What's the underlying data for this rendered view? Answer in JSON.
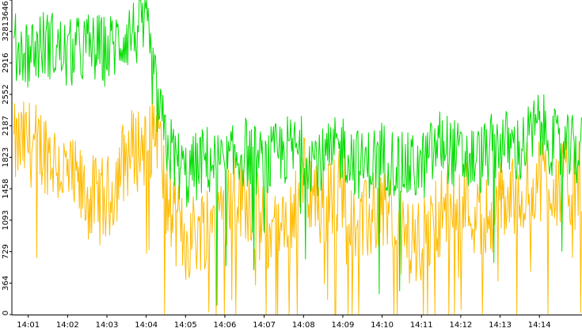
{
  "chart_data": {
    "type": "line",
    "title": "",
    "xlabel": "",
    "ylabel": "",
    "x_tick_labels": [
      "14:01",
      "14:02",
      "14:03",
      "14:04",
      "14:05",
      "14:06",
      "14:07",
      "14:08",
      "14:09",
      "14:10",
      "14:11",
      "14:12",
      "14:13",
      "14:14"
    ],
    "y_tick_labels": [
      "0",
      "364",
      "729",
      "1093",
      "1458",
      "1823",
      "2187",
      "2552",
      "2916",
      "3281",
      "3646"
    ],
    "ylim": [
      0,
      3646
    ],
    "xlim": [
      "14:00:35",
      "14:15:05"
    ],
    "grid": false,
    "legend": "none",
    "series": [
      {
        "color": "#00dd00",
        "x_minutes": [
          0.0,
          0.5,
          1.0,
          1.5,
          2.0,
          2.5,
          3.0,
          3.5,
          4.0,
          4.3,
          4.5,
          5.0,
          5.5,
          6.0,
          6.5,
          7.0,
          7.5,
          8.0,
          8.5,
          9.0,
          9.5,
          10.0,
          10.5,
          11.0,
          11.5,
          12.0,
          12.5,
          13.0,
          13.5,
          14.0,
          14.5
        ],
        "values": [
          2900,
          3100,
          3050,
          3150,
          3000,
          3100,
          3050,
          3250,
          3300,
          2400,
          2000,
          1600,
          1800,
          1700,
          1900,
          1700,
          1900,
          1900,
          1750,
          1950,
          1700,
          1850,
          1700,
          1700,
          2000,
          1800,
          1800,
          2000,
          1900,
          2200,
          1900
        ]
      },
      {
        "color": "#ffbb00",
        "x_minutes": [
          0.0,
          0.5,
          1.0,
          1.5,
          2.0,
          2.5,
          3.0,
          3.5,
          4.0,
          4.3,
          4.5,
          5.0,
          5.5,
          6.0,
          6.5,
          7.0,
          7.5,
          8.0,
          8.5,
          9.0,
          9.5,
          10.0,
          10.5,
          11.0,
          11.5,
          12.0,
          12.5,
          13.0,
          13.5,
          14.0,
          14.5
        ],
        "values": [
          1650,
          1900,
          2000,
          1900,
          1600,
          1350,
          1300,
          1850,
          2000,
          2200,
          1300,
          850,
          1050,
          1300,
          1400,
          1000,
          900,
          1600,
          1200,
          1500,
          1000,
          1300,
          900,
          800,
          1200,
          1400,
          1100,
          1300,
          1400,
          1600,
          1500
        ]
      }
    ]
  }
}
